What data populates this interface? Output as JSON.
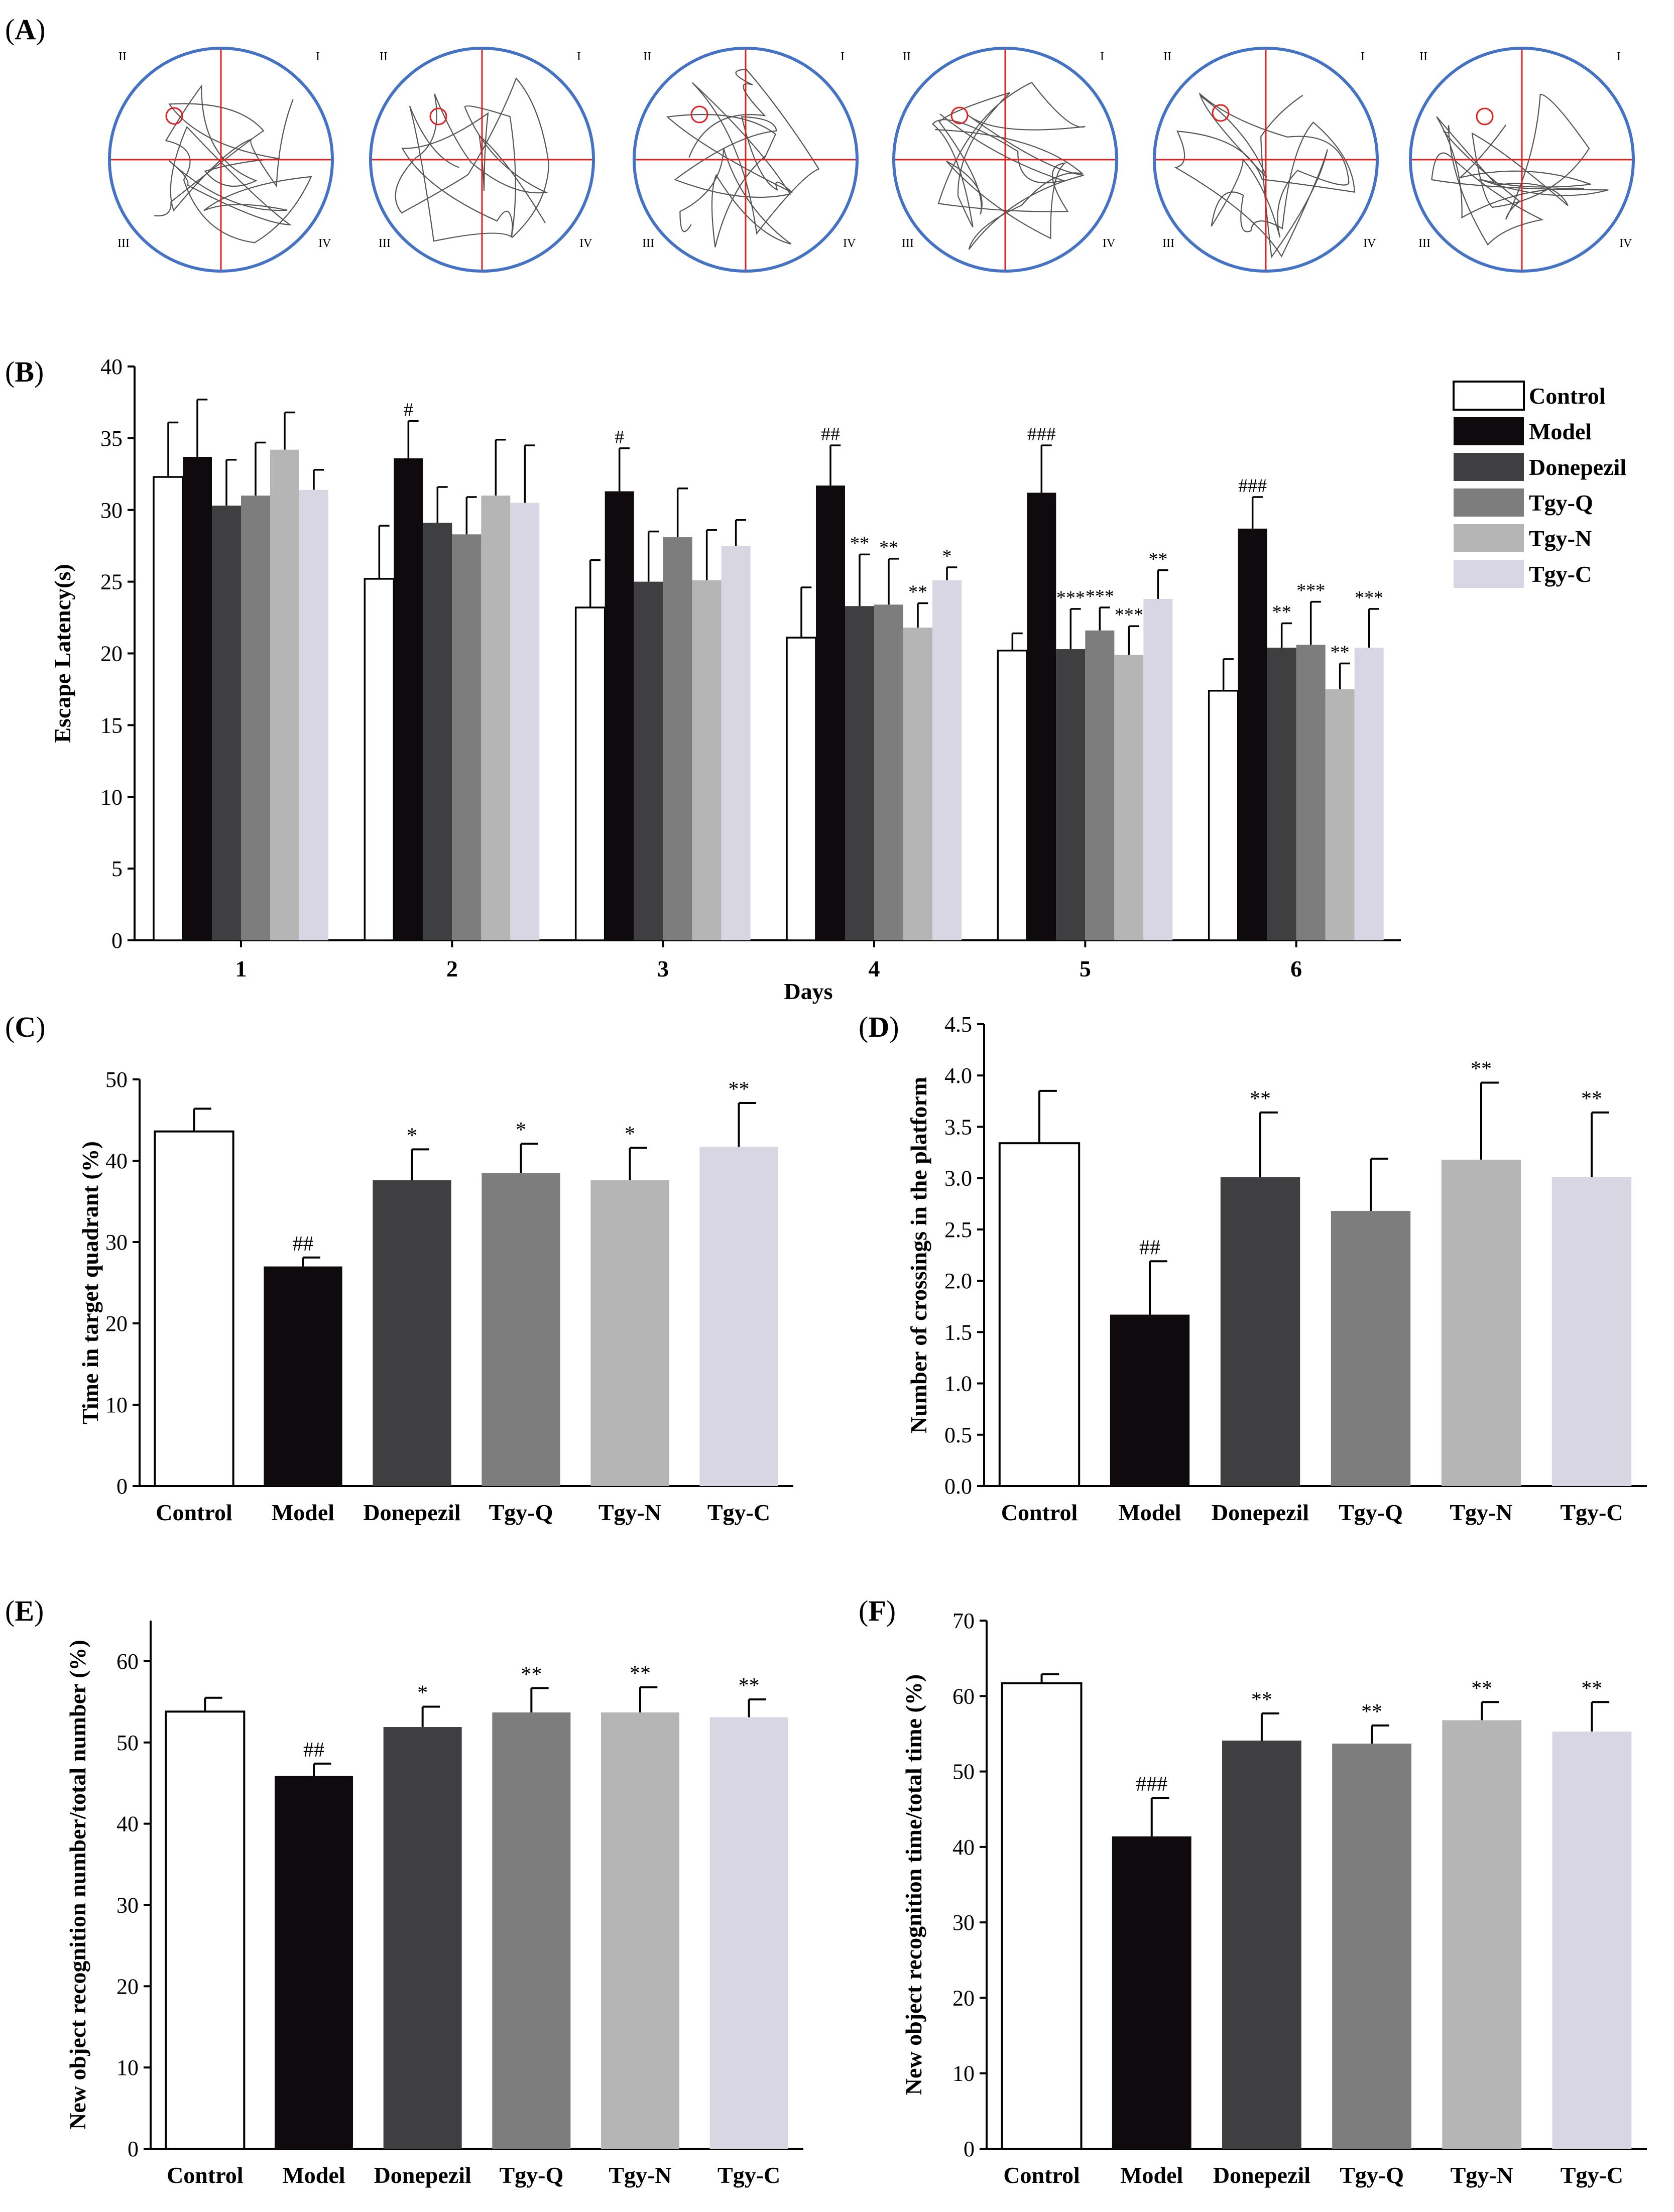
{
  "panel_labels": [
    "A",
    "B",
    "C",
    "D",
    "E",
    "F"
  ],
  "colors": {
    "Control": "#ffffff",
    "Model": "#0e0a0d",
    "Donepezil": "#3f3f41",
    "Tgy-Q": "#7d7d7d",
    "Tgy-N": "#b5b5b5",
    "Tgy-C": "#d9d6e3",
    "maze_border": "#4472c4",
    "maze_cross": "#e02020",
    "path": "#555555"
  },
  "maze": {
    "quadrant_labels": [
      "I",
      "II",
      "III",
      "IV"
    ],
    "count": 6
  },
  "chart_data": [
    {
      "panel": "B",
      "type": "bar",
      "xlabel": "Days",
      "ylabel": "Escape Latency(s)",
      "ylim": [
        0,
        40
      ],
      "yticks": [
        0,
        5,
        10,
        15,
        20,
        25,
        30,
        35,
        40
      ],
      "categories": [
        "1",
        "2",
        "3",
        "4",
        "5",
        "6"
      ],
      "legend_position": "top-right",
      "series": [
        {
          "name": "Control",
          "values": [
            32.3,
            25.2,
            23.2,
            21.1,
            20.2,
            17.4
          ],
          "errors": [
            3.8,
            3.7,
            3.3,
            3.5,
            1.2,
            2.2
          ],
          "annotations": [
            "",
            "",
            "",
            "",
            "",
            ""
          ]
        },
        {
          "name": "Model",
          "values": [
            33.7,
            33.6,
            31.3,
            31.7,
            31.2,
            28.7
          ],
          "errors": [
            4.0,
            2.6,
            3.0,
            2.8,
            3.3,
            2.2
          ],
          "annotations": [
            "",
            "#",
            "#",
            "##",
            "###",
            "###"
          ]
        },
        {
          "name": "Donepezil",
          "values": [
            30.3,
            29.1,
            25.0,
            23.3,
            20.3,
            20.4
          ],
          "errors": [
            3.2,
            2.5,
            3.5,
            3.6,
            2.8,
            1.7
          ],
          "annotations": [
            "",
            "",
            "",
            "**",
            "***",
            "**"
          ]
        },
        {
          "name": "Tgy-Q",
          "values": [
            31.0,
            28.3,
            28.1,
            23.4,
            21.6,
            20.6
          ],
          "errors": [
            3.7,
            2.6,
            3.4,
            3.2,
            1.6,
            3.0
          ],
          "annotations": [
            "",
            "",
            "",
            "**",
            "***",
            "***"
          ]
        },
        {
          "name": "Tgy-N",
          "values": [
            34.2,
            31.0,
            25.1,
            21.8,
            19.9,
            17.5
          ],
          "errors": [
            2.6,
            3.9,
            3.5,
            1.7,
            2.0,
            1.8
          ],
          "annotations": [
            "",
            "",
            "",
            "**",
            "***",
            "**"
          ]
        },
        {
          "name": "Tgy-C",
          "values": [
            31.4,
            30.5,
            27.5,
            25.1,
            23.8,
            20.4
          ],
          "errors": [
            1.4,
            4.0,
            1.8,
            0.9,
            2.0,
            2.7
          ],
          "annotations": [
            "",
            "",
            "",
            "*",
            "**",
            "***"
          ]
        }
      ]
    },
    {
      "panel": "C",
      "type": "bar",
      "ylabel": "Time in target quadrant (%)",
      "ylim": [
        0,
        50
      ],
      "yticks": [
        0,
        10,
        20,
        30,
        40,
        50
      ],
      "categories": [
        "Control",
        "Model",
        "Donepezil",
        "Tgy-Q",
        "Tgy-N",
        "Tgy-C"
      ],
      "values": [
        43.6,
        27.0,
        37.6,
        38.5,
        37.6,
        41.7
      ],
      "errors": [
        2.8,
        1.1,
        3.8,
        3.6,
        4.0,
        5.4
      ],
      "annotations": [
        "",
        "##",
        "*",
        "*",
        "*",
        "**"
      ]
    },
    {
      "panel": "D",
      "type": "bar",
      "ylabel": "Number of crossings in the platform",
      "ylim": [
        0,
        4.5
      ],
      "yticks": [
        "0.0",
        "0.5",
        "1.0",
        "1.5",
        "2.0",
        "2.5",
        "3.0",
        "3.5",
        "4.0",
        "4.5"
      ],
      "categories": [
        "Control",
        "Model",
        "Donepezil",
        "Tgy-Q",
        "Tgy-N",
        "Tgy-C"
      ],
      "values": [
        3.34,
        1.67,
        3.01,
        2.68,
        3.18,
        3.01
      ],
      "errors": [
        0.51,
        0.52,
        0.63,
        0.51,
        0.75,
        0.63
      ],
      "annotations": [
        "",
        "##",
        "**",
        "",
        "**",
        "**"
      ]
    },
    {
      "panel": "E",
      "type": "bar",
      "ylabel": "New object recognition number/total number (%)",
      "ylim": [
        0,
        65
      ],
      "yticks": [
        0,
        10,
        20,
        30,
        40,
        50,
        60
      ],
      "categories": [
        "Control",
        "Model",
        "Donepezil",
        "Tgy-Q",
        "Tgy-N",
        "Tgy-C"
      ],
      "values": [
        53.8,
        45.9,
        51.9,
        53.7,
        53.7,
        53.1
      ],
      "errors": [
        1.7,
        1.5,
        2.5,
        3.0,
        3.1,
        2.2
      ],
      "annotations": [
        "",
        "##",
        "*",
        "**",
        "**",
        "**"
      ]
    },
    {
      "panel": "F",
      "type": "bar",
      "ylabel": "New object recognition time/total time (%)",
      "ylim": [
        0,
        70
      ],
      "yticks": [
        0,
        10,
        20,
        30,
        40,
        50,
        60,
        70
      ],
      "categories": [
        "Control",
        "Model",
        "Donepezil",
        "Tgy-Q",
        "Tgy-N",
        "Tgy-C"
      ],
      "values": [
        61.7,
        41.4,
        54.1,
        53.7,
        56.8,
        55.3
      ],
      "errors": [
        1.2,
        5.1,
        3.6,
        2.4,
        2.4,
        3.9
      ],
      "annotations": [
        "",
        "###",
        "**",
        "**",
        "**",
        "**"
      ]
    }
  ]
}
